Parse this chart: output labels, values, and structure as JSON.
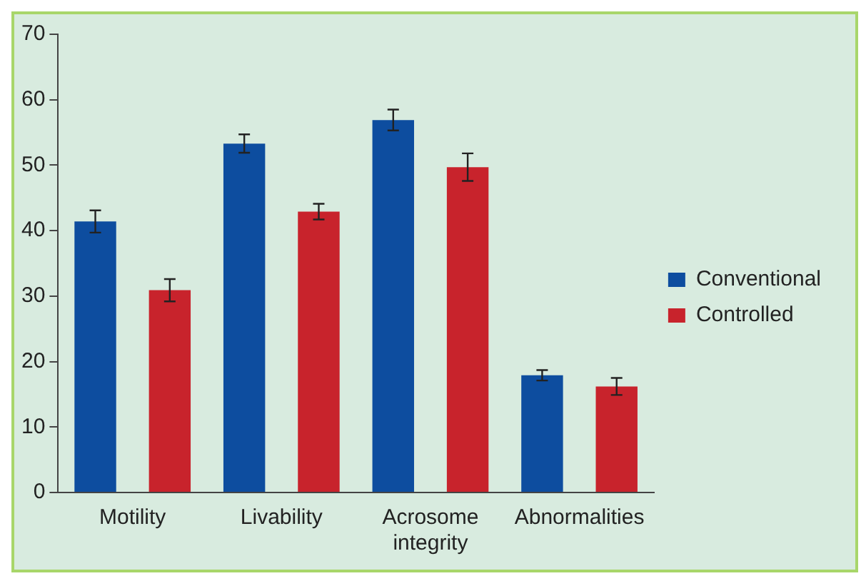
{
  "chart_data": {
    "type": "bar",
    "categories": [
      "Motility",
      "Livability",
      "Acrosome integrity",
      "Abnormalities"
    ],
    "series": [
      {
        "name": "Conventional",
        "color": "#0d4d9f",
        "values": [
          41.4,
          53.3,
          56.9,
          17.9
        ],
        "errors": [
          1.7,
          1.4,
          1.6,
          0.8
        ]
      },
      {
        "name": "Controlled",
        "color": "#c8232c",
        "values": [
          30.9,
          42.9,
          49.7,
          16.2
        ],
        "errors": [
          1.7,
          1.2,
          2.1,
          1.3
        ]
      }
    ],
    "ylim": [
      0,
      70
    ],
    "yticks": [
      0,
      10,
      20,
      30,
      40,
      50,
      60,
      70
    ],
    "grid": false,
    "legend": "right"
  }
}
